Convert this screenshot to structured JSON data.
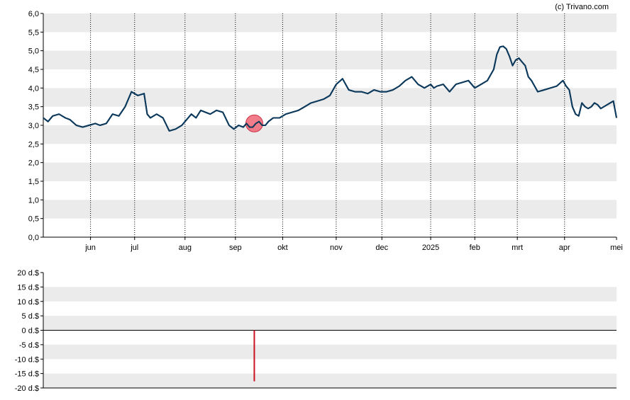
{
  "credit": "(c) Trivano.com",
  "colors": {
    "band": "#ebebeb",
    "line": "#0d3a5c",
    "marker": "#ee6677",
    "bar": "#cc1122",
    "axis": "#000000"
  },
  "chart_data": [
    {
      "type": "line",
      "title": "",
      "xlabel": "",
      "ylabel": "",
      "ylim": [
        0,
        6
      ],
      "xlim": [
        0,
        364
      ],
      "y_ticks": [
        "0,0",
        "0,5",
        "1,0",
        "1,5",
        "2,0",
        "2,5",
        "3,0",
        "3,5",
        "4,0",
        "4,5",
        "5,0",
        "5,5",
        "6,0"
      ],
      "x_ticks": [
        {
          "label": "jun",
          "x": 30
        },
        {
          "label": "jul",
          "x": 58
        },
        {
          "label": "aug",
          "x": 90
        },
        {
          "label": "sep",
          "x": 122
        },
        {
          "label": "okt",
          "x": 152
        },
        {
          "label": "nov",
          "x": 186
        },
        {
          "label": "dec",
          "x": 215
        },
        {
          "label": "2025",
          "x": 246
        },
        {
          "label": "feb",
          "x": 274
        },
        {
          "label": "mrt",
          "x": 301
        },
        {
          "label": "apr",
          "x": 331
        },
        {
          "label": "mei",
          "x": 364
        }
      ],
      "grid": "alternating horizontal bands, dotted vertical lines at month ticks",
      "series": [
        {
          "x": [
            0,
            3,
            6,
            10,
            14,
            17,
            21,
            25,
            29,
            33,
            36,
            40,
            44,
            48,
            52,
            56,
            60,
            64,
            66,
            68,
            72,
            76,
            80,
            84,
            88,
            90,
            92,
            94,
            97,
            100,
            103,
            106,
            110,
            114,
            118,
            121,
            124,
            127,
            129,
            131,
            133,
            135,
            137,
            139,
            141,
            143,
            146,
            150,
            154,
            158,
            162,
            166,
            170,
            174,
            178,
            182,
            186,
            190,
            194,
            198,
            202,
            206,
            210,
            214,
            218,
            222,
            226,
            230,
            234,
            238,
            242,
            246,
            248,
            250,
            254,
            258,
            262,
            266,
            270,
            274,
            278,
            282,
            286,
            288,
            290,
            292,
            294,
            296,
            298,
            300,
            302,
            304,
            306,
            308,
            310,
            314,
            318,
            322,
            326,
            330,
            332,
            334,
            336,
            338,
            340,
            342,
            344,
            346,
            348,
            350,
            352,
            354,
            356,
            358,
            360,
            362,
            364
          ],
          "values": [
            3.2,
            3.1,
            3.25,
            3.3,
            3.2,
            3.15,
            3.0,
            2.95,
            3.0,
            3.05,
            3.0,
            3.05,
            3.3,
            3.25,
            3.5,
            3.9,
            3.8,
            3.85,
            3.3,
            3.2,
            3.3,
            3.2,
            2.85,
            2.9,
            3.0,
            3.1,
            3.2,
            3.3,
            3.2,
            3.4,
            3.35,
            3.3,
            3.4,
            3.35,
            3.0,
            2.9,
            3.0,
            2.95,
            3.05,
            2.95,
            2.95,
            3.05,
            3.1,
            3.0,
            3.0,
            3.1,
            3.2,
            3.2,
            3.3,
            3.35,
            3.4,
            3.5,
            3.6,
            3.65,
            3.7,
            3.8,
            4.1,
            4.25,
            3.95,
            3.9,
            3.9,
            3.85,
            3.95,
            3.9,
            3.9,
            3.95,
            4.05,
            4.2,
            4.3,
            4.1,
            4.0,
            4.1,
            4.0,
            4.05,
            4.1,
            3.9,
            4.1,
            4.15,
            4.2,
            4.0,
            4.1,
            4.2,
            4.5,
            4.9,
            5.1,
            5.12,
            5.05,
            4.85,
            4.6,
            4.75,
            4.8,
            4.7,
            4.6,
            4.3,
            4.2,
            3.9,
            3.95,
            4.0,
            4.05,
            4.2,
            4.05,
            3.95,
            3.5,
            3.3,
            3.25,
            3.6,
            3.5,
            3.45,
            3.5,
            3.6,
            3.55,
            3.45,
            3.5,
            3.55,
            3.6,
            3.65,
            3.2
          ]
        }
      ],
      "annotations": [
        {
          "type": "marker",
          "x": 134,
          "y": 3.05
        }
      ]
    },
    {
      "type": "bar",
      "title": "",
      "xlabel": "",
      "ylabel": "",
      "ylim": [
        -20,
        20
      ],
      "y_ticks": [
        "20 d.$",
        "15 d.$",
        "10 d.$",
        "5 d.$",
        "0 d.$",
        "-5 d.$",
        "-10 d.$",
        "-15 d.$",
        "-20 d.$"
      ],
      "y_tick_values": [
        20,
        15,
        10,
        5,
        0,
        -5,
        -10,
        -15,
        -20
      ],
      "grid": "alternating horizontal bands",
      "bars": [
        {
          "x": 134,
          "value": -17.7
        }
      ]
    }
  ]
}
